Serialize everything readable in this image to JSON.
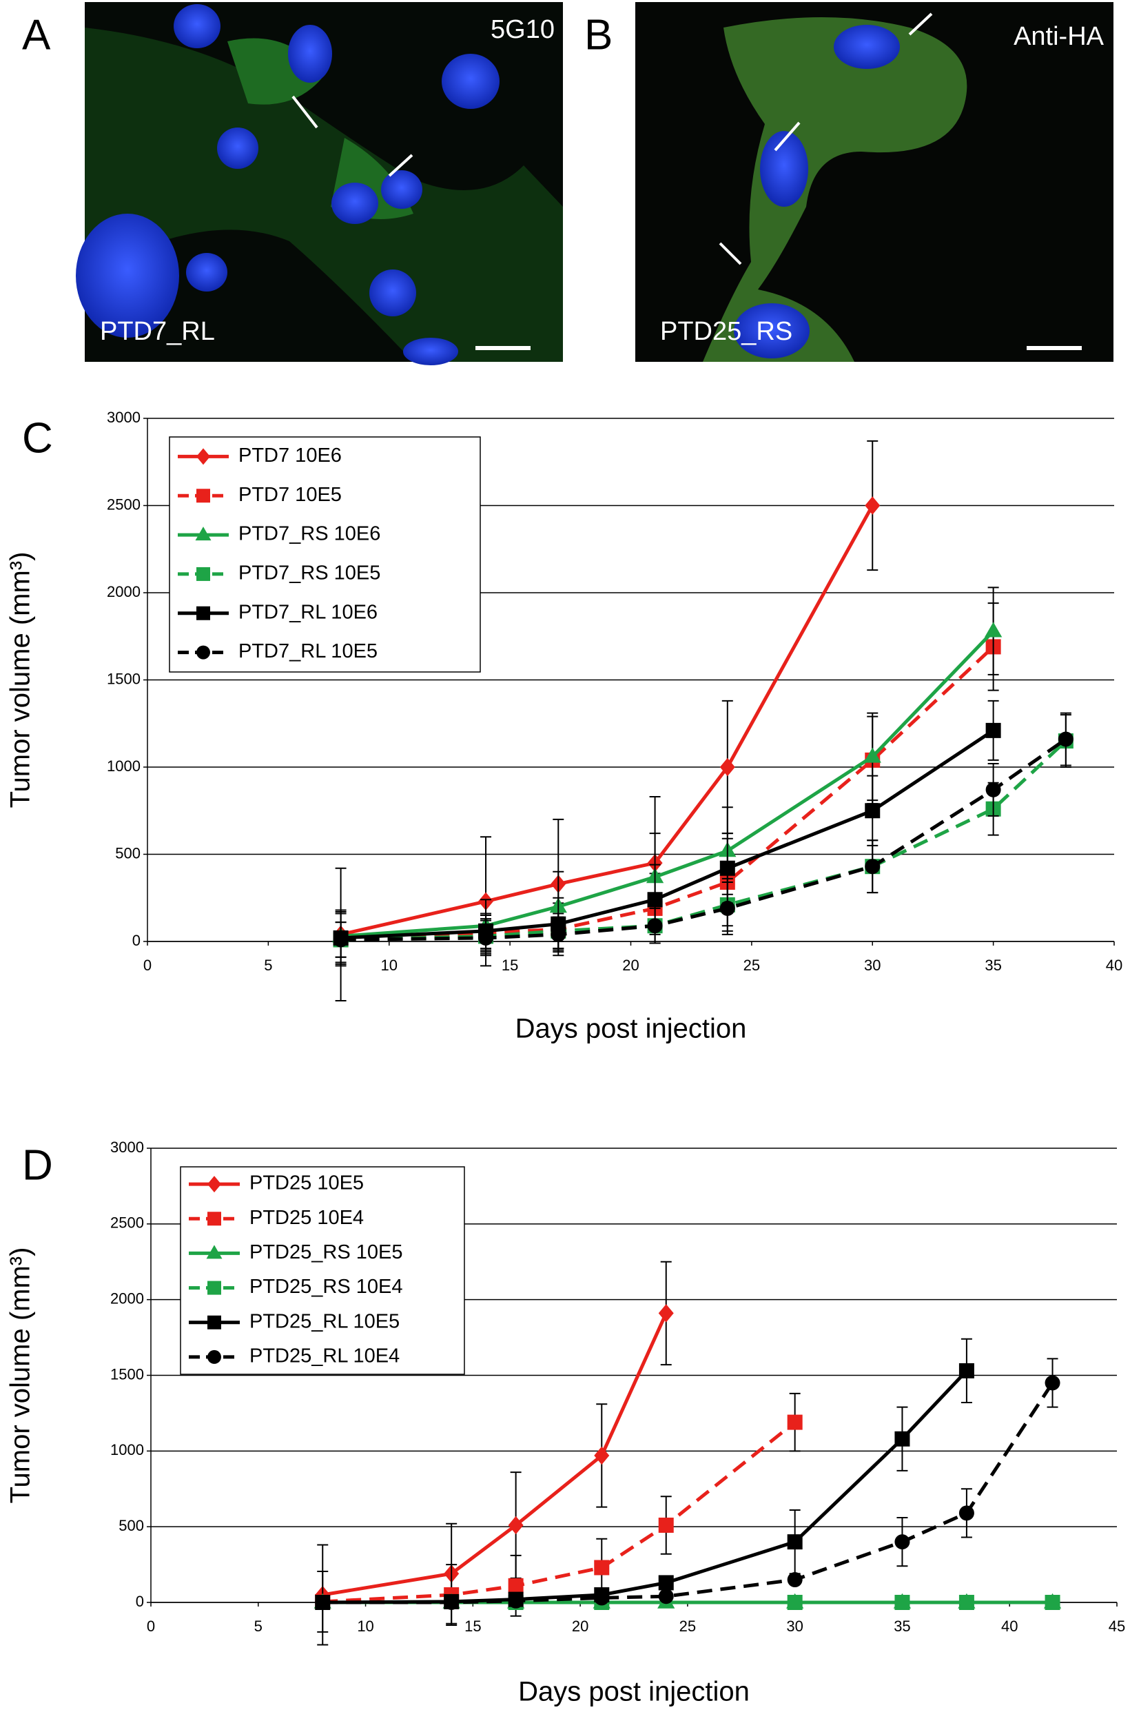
{
  "panels": [
    {
      "label": "A",
      "stain": "5G10",
      "caption": "PTD7_RL"
    },
    {
      "label": "B",
      "stain": "Anti-HA",
      "caption": "PTD25_RS"
    }
  ],
  "chart_data": [
    {
      "type": "line",
      "panel": "C",
      "xlabel": "Days post injection",
      "ylabel": "Tumor volume (mm³)",
      "xlim": [
        0,
        40
      ],
      "xticks": [
        0,
        5,
        10,
        15,
        20,
        25,
        30,
        35,
        40
      ],
      "ylim": [
        0,
        3000
      ],
      "yticks": [
        0,
        500,
        1000,
        1500,
        2000,
        2500,
        3000
      ],
      "grid": true,
      "legend": "upper-left",
      "series": [
        {
          "name": "PTD7 10E6",
          "color": "#e8211b",
          "dashed": false,
          "marker": "diamond",
          "x": [
            8,
            14,
            17,
            21,
            24,
            30
          ],
          "values": [
            40,
            230,
            330,
            450,
            1000,
            2500
          ],
          "errors": [
            380,
            370,
            370,
            380,
            380,
            370
          ]
        },
        {
          "name": "PTD7 10E5",
          "color": "#e8211b",
          "dashed": true,
          "marker": "square",
          "x": [
            8,
            14,
            17,
            21,
            24,
            30,
            35
          ],
          "values": [
            10,
            50,
            70,
            190,
            340,
            1040,
            1690
          ],
          "errors": [
            150,
            100,
            150,
            200,
            250,
            250,
            250
          ]
        },
        {
          "name": "PTD7_RS 10E6",
          "color": "#1ea446",
          "dashed": false,
          "marker": "triangle",
          "x": [
            8,
            14,
            17,
            21,
            24,
            30,
            35
          ],
          "values": [
            30,
            90,
            200,
            370,
            520,
            1060,
            1780
          ],
          "errors": [
            150,
            150,
            200,
            250,
            250,
            250,
            250
          ]
        },
        {
          "name": "PTD7_RS 10E5",
          "color": "#1ea446",
          "dashed": true,
          "marker": "square",
          "x": [
            8,
            14,
            17,
            21,
            24,
            30,
            35,
            38
          ],
          "values": [
            10,
            30,
            60,
            90,
            210,
            430,
            760,
            1150
          ],
          "errors": [
            100,
            100,
            100,
            100,
            150,
            150,
            150,
            150
          ]
        },
        {
          "name": "PTD7_RL 10E6",
          "color": "#000000",
          "dashed": false,
          "marker": "square",
          "x": [
            8,
            14,
            17,
            21,
            24,
            30,
            35
          ],
          "values": [
            20,
            60,
            100,
            240,
            420,
            750,
            1210
          ],
          "errors": [
            150,
            100,
            150,
            200,
            200,
            200,
            170
          ]
        },
        {
          "name": "PTD7_RL 10E5",
          "color": "#000000",
          "dashed": true,
          "marker": "circle",
          "x": [
            8,
            14,
            17,
            21,
            24,
            30,
            35,
            38
          ],
          "values": [
            10,
            20,
            40,
            90,
            190,
            430,
            870,
            1160
          ],
          "errors": [
            100,
            100,
            100,
            100,
            150,
            150,
            150,
            150
          ]
        }
      ]
    },
    {
      "type": "line",
      "panel": "D",
      "xlabel": "Days post injection",
      "ylabel": "Tumor volume (mm³)",
      "xlim": [
        0,
        45
      ],
      "xticks": [
        0,
        5,
        10,
        15,
        20,
        25,
        30,
        35,
        40,
        45
      ],
      "ylim": [
        0,
        3000
      ],
      "yticks": [
        0,
        500,
        1000,
        1500,
        2000,
        2500,
        3000
      ],
      "grid": true,
      "legend": "upper-left",
      "series": [
        {
          "name": "PTD25 10E5",
          "color": "#e8211b",
          "dashed": false,
          "marker": "diamond",
          "x": [
            8,
            14,
            17,
            21,
            24
          ],
          "values": [
            50,
            190,
            510,
            970,
            1910
          ],
          "errors": [
            330,
            330,
            350,
            340,
            340
          ]
        },
        {
          "name": "PTD25 10E4",
          "color": "#e8211b",
          "dashed": true,
          "marker": "square",
          "x": [
            8,
            14,
            17,
            21,
            24,
            30
          ],
          "values": [
            5,
            50,
            110,
            230,
            510,
            1190
          ],
          "errors": [
            200,
            200,
            200,
            190,
            190,
            190
          ]
        },
        {
          "name": "PTD25_RS 10E5",
          "color": "#1ea446",
          "dashed": false,
          "marker": "triangle",
          "x": [
            8,
            14,
            17,
            21,
            24,
            30,
            35,
            38,
            42
          ],
          "values": [
            0,
            0,
            0,
            0,
            0,
            0,
            0,
            0,
            0
          ]
        },
        {
          "name": "PTD25_RS 10E4",
          "color": "#1ea446",
          "dashed": true,
          "marker": "square",
          "x": [
            17,
            21,
            30,
            35,
            38,
            42
          ],
          "values": [
            0,
            0,
            0,
            0,
            0,
            0
          ]
        },
        {
          "name": "PTD25_RL 10E5",
          "color": "#000000",
          "dashed": false,
          "marker": "square",
          "x": [
            8,
            14,
            17,
            21,
            24,
            30,
            35,
            38
          ],
          "values": [
            0,
            5,
            20,
            50,
            130,
            400,
            1080,
            1530
          ],
          "errors": [
            0,
            0,
            0,
            0,
            0,
            210,
            210,
            210
          ]
        },
        {
          "name": "PTD25_RL 10E4",
          "color": "#000000",
          "dashed": true,
          "marker": "circle",
          "x": [
            8,
            14,
            17,
            21,
            24,
            30,
            35,
            38,
            42
          ],
          "values": [
            0,
            0,
            10,
            30,
            40,
            150,
            400,
            590,
            1450
          ],
          "errors": [
            0,
            0,
            0,
            0,
            0,
            0,
            160,
            160,
            160
          ]
        }
      ]
    }
  ]
}
